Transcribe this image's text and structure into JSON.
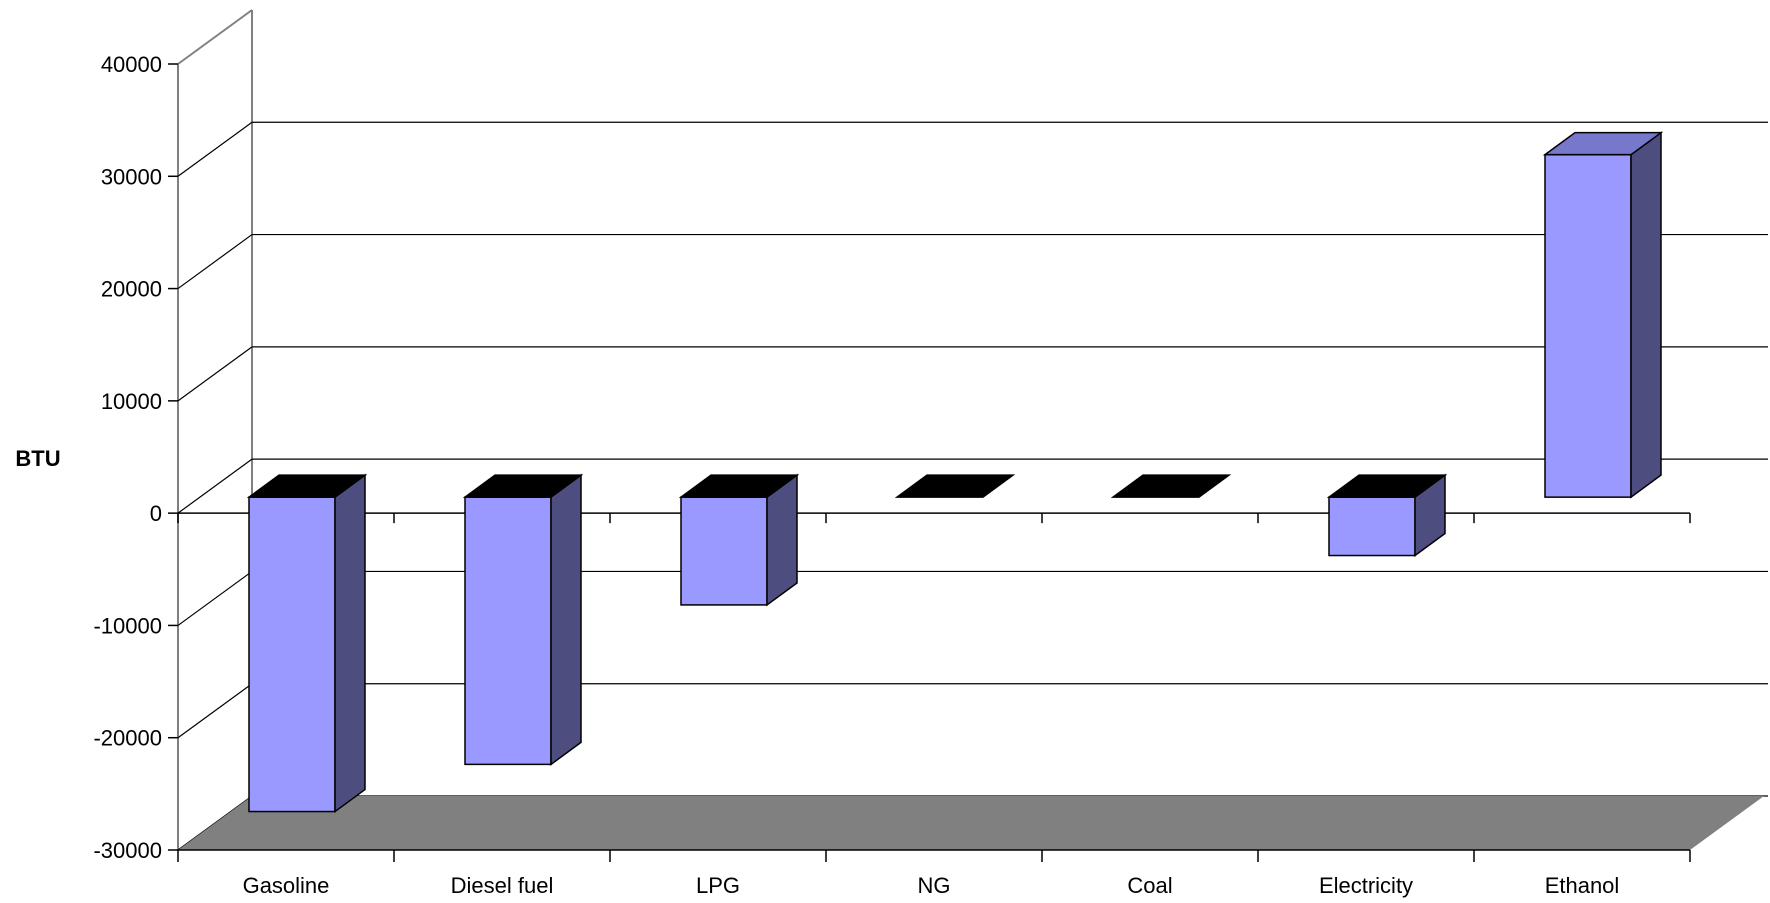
{
  "chart_data": {
    "type": "bar",
    "title": "",
    "xlabel": "",
    "ylabel": "BTU",
    "ylim": [
      -30000,
      40000
    ],
    "yticks": [
      "40000",
      "30000",
      "20000",
      "10000",
      "0",
      "-10000",
      "-20000",
      "-30000"
    ],
    "ytick_values": [
      40000,
      30000,
      20000,
      10000,
      0,
      -10000,
      -20000,
      -30000
    ],
    "categories": [
      "Gasoline",
      "Diesel fuel",
      "LPG",
      "NG",
      "Coal",
      "Electricity",
      "Ethanol"
    ],
    "values": [
      -28000,
      -23800,
      -9600,
      0,
      0,
      -5200,
      30500
    ],
    "grid": true,
    "legend": "none",
    "colors": {
      "bar_front": "#9999ff",
      "bar_side": "#4d4d80",
      "bar_top_negative": "#000000",
      "bar_top_positive": "#7777cc",
      "floor": "#808080",
      "gridline": "#000000",
      "wall_edge": "#808080"
    }
  }
}
